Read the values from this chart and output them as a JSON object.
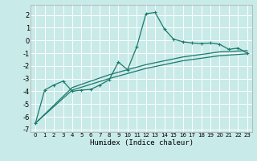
{
  "xlabel": "Humidex (Indice chaleur)",
  "bg_color": "#c8eae8",
  "grid_color": "#ffffff",
  "line_color": "#1a7a6e",
  "xlim": [
    -0.5,
    23.5
  ],
  "ylim": [
    -7.2,
    2.8
  ],
  "xticks": [
    0,
    1,
    2,
    3,
    4,
    5,
    6,
    7,
    8,
    9,
    10,
    11,
    12,
    13,
    14,
    15,
    16,
    17,
    18,
    19,
    20,
    21,
    22,
    23
  ],
  "yticks": [
    -7,
    -6,
    -5,
    -4,
    -3,
    -2,
    -1,
    0,
    1,
    2
  ],
  "series": [
    [
      0,
      -6.5
    ],
    [
      1,
      -3.9
    ],
    [
      2,
      -3.5
    ],
    [
      3,
      -3.2
    ],
    [
      4,
      -4.0
    ],
    [
      5,
      -3.9
    ],
    [
      6,
      -3.85
    ],
    [
      7,
      -3.5
    ],
    [
      8,
      -3.1
    ],
    [
      9,
      -1.7
    ],
    [
      10,
      -2.3
    ],
    [
      11,
      -0.5
    ],
    [
      12,
      2.1
    ],
    [
      13,
      2.2
    ],
    [
      14,
      0.9
    ],
    [
      15,
      0.1
    ],
    [
      16,
      -0.1
    ],
    [
      17,
      -0.2
    ],
    [
      18,
      -0.25
    ],
    [
      19,
      -0.2
    ],
    [
      20,
      -0.3
    ],
    [
      21,
      -0.7
    ],
    [
      22,
      -0.6
    ],
    [
      23,
      -1.0
    ]
  ],
  "trend1": [
    [
      0,
      -6.5
    ],
    [
      4,
      -3.9
    ],
    [
      8,
      -3.0
    ],
    [
      12,
      -2.2
    ],
    [
      16,
      -1.6
    ],
    [
      20,
      -1.2
    ],
    [
      23,
      -1.05
    ]
  ],
  "trend2": [
    [
      0,
      -6.5
    ],
    [
      4,
      -3.7
    ],
    [
      8,
      -2.7
    ],
    [
      12,
      -1.9
    ],
    [
      16,
      -1.3
    ],
    [
      20,
      -0.9
    ],
    [
      23,
      -0.8
    ]
  ]
}
